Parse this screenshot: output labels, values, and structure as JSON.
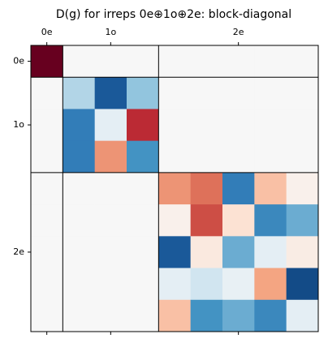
{
  "chart_data": {
    "type": "heatmap",
    "title": "D(g) for irreps 0e⊕1o⊕2e: block-diagonal",
    "colormap": "RdBu_r",
    "clim": [
      -1,
      1
    ],
    "xlim": [
      -0.5,
      8.5
    ],
    "ylim": [
      -0.5,
      8.5
    ],
    "xticks": [
      {
        "value": 0,
        "label": "0e"
      },
      {
        "value": 2,
        "label": "1o"
      },
      {
        "value": 6,
        "label": "2e"
      }
    ],
    "yticks": [
      {
        "value": 0,
        "label": "0e"
      },
      {
        "value": 2,
        "label": "1o"
      },
      {
        "value": 6,
        "label": "2e"
      }
    ],
    "block_sizes": [
      1,
      3,
      5
    ],
    "z": [
      [
        1,
        0,
        0,
        0,
        0,
        0,
        0,
        0,
        0
      ],
      [
        0,
        -0.3,
        -0.85,
        -0.4,
        0,
        0,
        0,
        0,
        0
      ],
      [
        0,
        -0.7,
        -0.1,
        0.75,
        0,
        0,
        0,
        0,
        0
      ],
      [
        0,
        -0.7,
        0.45,
        -0.6,
        0,
        0,
        0,
        0,
        0
      ],
      [
        0,
        0,
        0,
        0,
        0.45,
        0.55,
        -0.7,
        0.3,
        0.05
      ],
      [
        0,
        0,
        0,
        0,
        0.05,
        0.65,
        0.15,
        -0.65,
        -0.5
      ],
      [
        0,
        0,
        0,
        0,
        -0.85,
        0.1,
        -0.5,
        -0.1,
        0.08
      ],
      [
        0,
        0,
        0,
        0,
        -0.1,
        -0.2,
        -0.08,
        0.4,
        -0.9
      ],
      [
        0,
        0,
        0,
        0,
        0.3,
        -0.6,
        -0.5,
        -0.65,
        -0.1
      ]
    ]
  }
}
